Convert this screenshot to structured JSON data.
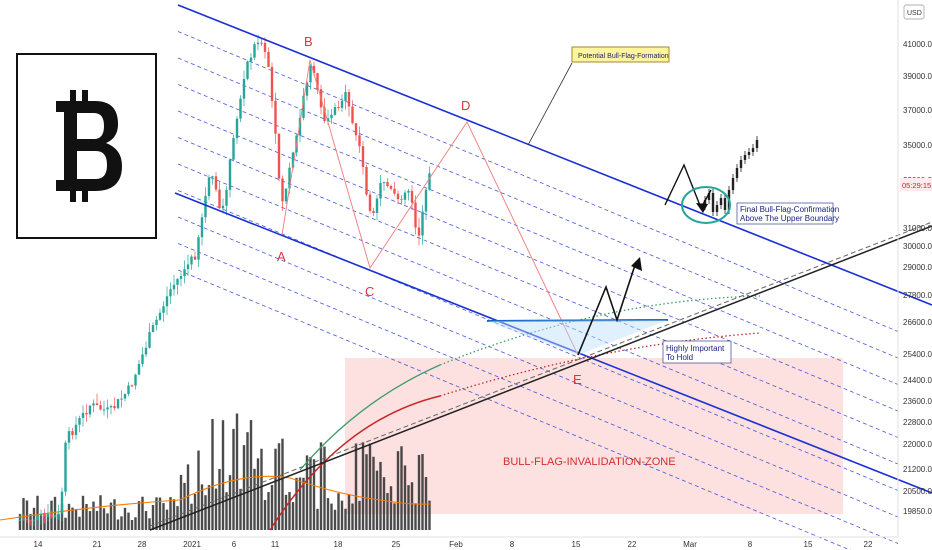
{
  "chart_data": {
    "type": "candlestick",
    "symbol_logo": "bitcoin-logo",
    "currency": "USD",
    "current_price_label": "05:29:15",
    "y_ticks": [
      "41000.0",
      "39000.0",
      "37000.0",
      "35000.0",
      "33000.0",
      "31000.0",
      "30000.0",
      "29000.0",
      "27800.0",
      "26600.0",
      "25400.0",
      "24400.0",
      "23600.0",
      "22800.0",
      "22000.0",
      "21200.0",
      "20500.0",
      "19850.0"
    ],
    "x_ticks": [
      "14",
      "21",
      "28",
      "2021",
      "6",
      "11",
      "18",
      "25",
      "Feb",
      "8",
      "15",
      "22",
      "Mar",
      "8",
      "15",
      "22"
    ],
    "wave_labels": [
      "A",
      "B",
      "C",
      "D",
      "E"
    ],
    "annotations": {
      "potential": "Potential Bull-Flag-Formation",
      "confirmation_line1": "Final Bull-Flag-Confirmation",
      "confirmation_line2": "Above The Upper Boundary",
      "hold_line1": "Highly Important",
      "hold_line2": "To Hold",
      "zone": "BULL-FLAG-INVALIDATION-ZONE"
    },
    "colors": {
      "channel": "#1a2fd6",
      "bull": "#26a69a",
      "bear": "#ef5350",
      "wave": "#d9383a",
      "zone": "#fde0e0",
      "ma_green": "#3f9c6a",
      "ma_red": "#c62828",
      "ma_orange": "#f57c00"
    }
  }
}
